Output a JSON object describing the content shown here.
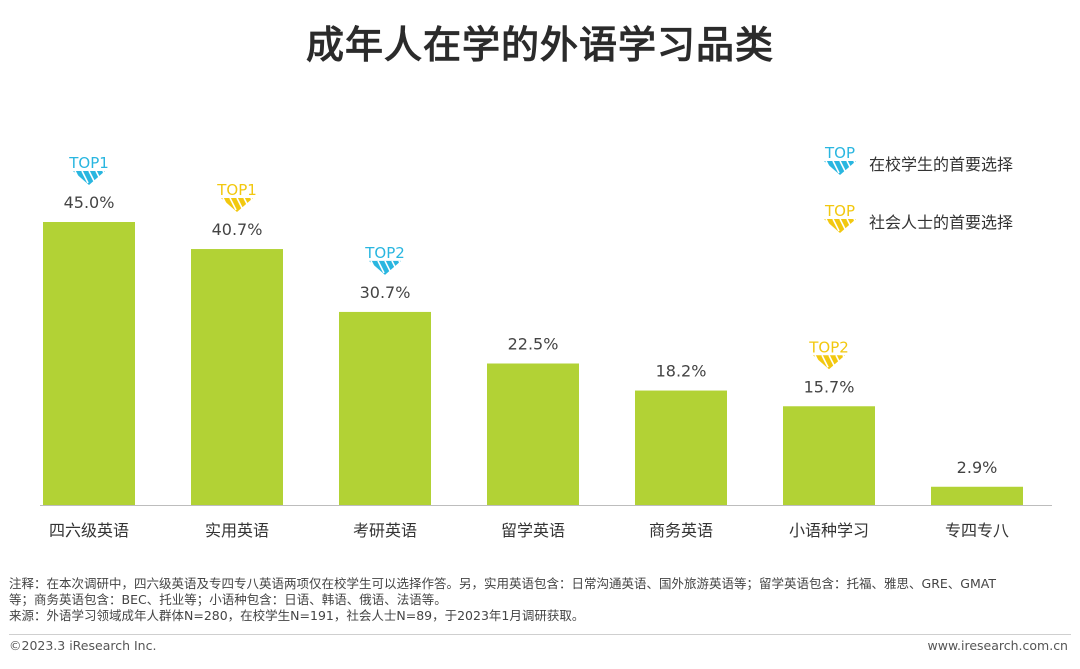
{
  "title": "成年人在学的外语学习品类",
  "chart_data": {
    "type": "bar",
    "categories": [
      "四六级英语",
      "实用英语",
      "考研英语",
      "留学英语",
      "商务英语",
      "小语种学习",
      "专四专八"
    ],
    "values": [
      45.0,
      40.7,
      30.7,
      22.5,
      18.2,
      15.7,
      2.9
    ],
    "value_labels": [
      "45.0%",
      "40.7%",
      "30.7%",
      "22.5%",
      "18.2%",
      "15.7%",
      "2.9%"
    ],
    "bar_color": "#b2d235",
    "ylim": [
      0,
      45
    ],
    "badges": [
      {
        "index": 0,
        "text": "TOP1",
        "group": "student"
      },
      {
        "index": 1,
        "text": "TOP1",
        "group": "social"
      },
      {
        "index": 2,
        "text": "TOP2",
        "group": "student"
      },
      {
        "index": 5,
        "text": "TOP2",
        "group": "social"
      }
    ],
    "legend": [
      {
        "group": "student",
        "badge": "TOP",
        "label": "在校学生的首要选择",
        "color": "#29b6e0"
      },
      {
        "group": "social",
        "badge": "TOP",
        "label": "社会人士的首要选择",
        "color": "#f2c80f"
      }
    ],
    "legend_position": "top-right"
  },
  "notes": [
    "注释：在本次调研中，四六级英语及专四专八英语两项仅在校学生可以选择作答。另，实用英语包含：日常沟通英语、国外旅游英语等；留学英语包含：托福、雅思、GRE、GMAT",
    "等；商务英语包含：BEC、托业等；小语种包含：日语、韩语、俄语、法语等。",
    "来源：外语学习领域成年人群体N=280，在校学生N=191，社会人士N=89，于2023年1月调研获取。"
  ],
  "footer": {
    "copyright": "©2023.3 iResearch Inc.",
    "site": "www.iresearch.com.cn"
  }
}
